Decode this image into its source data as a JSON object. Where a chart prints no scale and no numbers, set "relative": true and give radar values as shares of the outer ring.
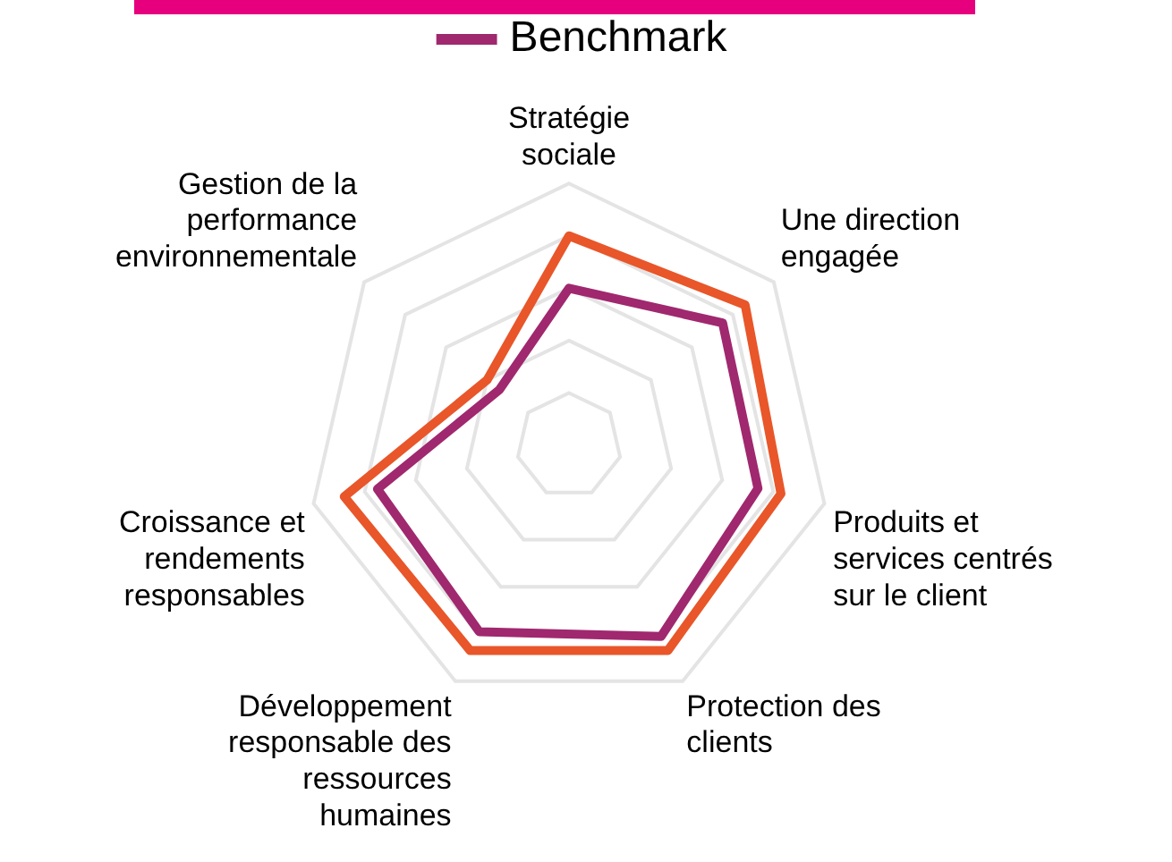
{
  "chart_data": {
    "type": "radar",
    "relative": true,
    "legend": "top",
    "grid": true,
    "marker": "none",
    "categories": [
      "Stratégie sociale",
      "Une direction engagée",
      "Produits et services centrés sur le client",
      "Protection des clients",
      "Développement responsable des ressources humaines",
      "Croissance et rendements responsables",
      "Gestion de la performance environnementale"
    ],
    "series": [
      {
        "color": "#e8562a",
        "values": [
          0.8,
          0.86,
          0.83,
          0.87,
          0.87,
          0.88,
          0.4
        ]
      },
      {
        "name": "Benchmark",
        "color": "#a0286e",
        "values": [
          0.6,
          0.75,
          0.74,
          0.81,
          0.79,
          0.75,
          0.34
        ]
      }
    ]
  }
}
